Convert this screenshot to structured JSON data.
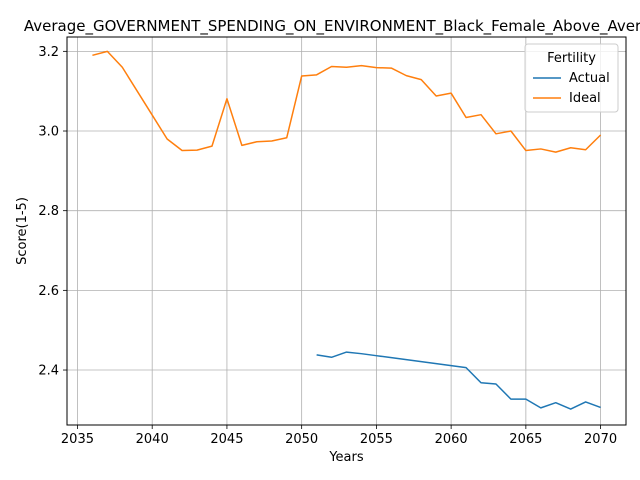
{
  "chart_data": {
    "type": "line",
    "title": "Average_GOVERNMENT_SPENDING_ON_ENVIRONMENT_Black_Female_Above_Average",
    "xlabel": "Years",
    "ylabel": "Score(1-5)",
    "xlim": [
      2034.3,
      2071.7
    ],
    "ylim": [
      2.262,
      3.236
    ],
    "xticks": [
      2035,
      2040,
      2045,
      2050,
      2055,
      2060,
      2065,
      2070
    ],
    "yticks": [
      2.4,
      2.6,
      2.8,
      3.0,
      3.2
    ],
    "xtick_labels": [
      "2035",
      "2040",
      "2045",
      "2050",
      "2055",
      "2060",
      "2065",
      "2070"
    ],
    "ytick_labels": [
      "2.4",
      "2.6",
      "2.8",
      "3.0",
      "3.2"
    ],
    "grid": true,
    "legend": {
      "title": "Fertility",
      "placement": "top-right"
    },
    "series": [
      {
        "name": "Actual",
        "color": "#1f77b4",
        "x": [
          2051,
          2052,
          2053,
          2054,
          2055,
          2056,
          2057,
          2058,
          2059,
          2060,
          2061,
          2062,
          2063,
          2064,
          2065,
          2066,
          2067,
          2068,
          2069,
          2070
        ],
        "y": [
          2.438,
          2.432,
          2.445,
          2.441,
          2.436,
          2.431,
          2.426,
          2.421,
          2.416,
          2.411,
          2.406,
          2.368,
          2.365,
          2.327,
          2.327,
          2.305,
          2.318,
          2.302,
          2.32,
          2.306
        ]
      },
      {
        "name": "Ideal",
        "color": "#ff7f0e",
        "x": [
          2036,
          2037,
          2038,
          2039,
          2040,
          2041,
          2042,
          2043,
          2044,
          2045,
          2046,
          2047,
          2048,
          2049,
          2050,
          2051,
          2052,
          2053,
          2054,
          2055,
          2056,
          2057,
          2058,
          2059,
          2060,
          2061,
          2062,
          2063,
          2064,
          2065,
          2066,
          2067,
          2068,
          2069,
          2070
        ],
        "y": [
          3.19,
          3.2,
          3.16,
          3.1,
          3.04,
          2.98,
          2.951,
          2.952,
          2.962,
          3.081,
          2.964,
          2.973,
          2.975,
          2.983,
          3.138,
          3.141,
          3.162,
          3.16,
          3.164,
          3.159,
          3.158,
          3.139,
          3.129,
          3.088,
          3.095,
          3.034,
          3.041,
          2.993,
          3.0,
          2.951,
          2.955,
          2.947,
          2.958,
          2.953,
          2.99
        ]
      }
    ]
  }
}
